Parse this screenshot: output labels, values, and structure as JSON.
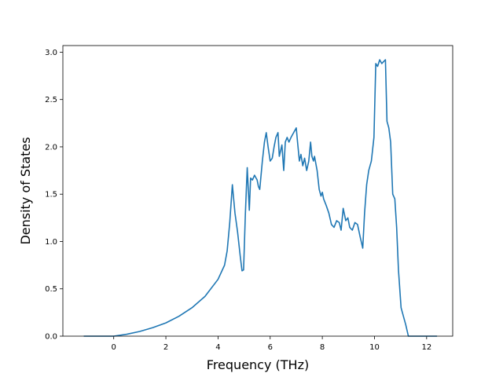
{
  "chart_data": {
    "type": "line",
    "xlabel": "Frequency (THz)",
    "ylabel": "Density of States",
    "xlim": [
      -1.95,
      13.0
    ],
    "ylim": [
      0.0,
      3.07
    ],
    "x_ticks": [
      0,
      2,
      4,
      6,
      8,
      10,
      12
    ],
    "x_tick_labels": [
      "0",
      "2",
      "4",
      "6",
      "8",
      "10",
      "12"
    ],
    "y_ticks": [
      0.0,
      0.5,
      1.0,
      1.5,
      2.0,
      2.5,
      3.0
    ],
    "y_tick_labels": [
      "0.0",
      "0.5",
      "1.0",
      "1.5",
      "2.0",
      "2.5",
      "3.0"
    ],
    "grid": false,
    "line_color": "#1f77b4",
    "series": [
      {
        "x": [
          -1.15,
          0.0,
          0.5,
          1.0,
          1.5,
          2.0,
          2.5,
          3.0,
          3.5,
          4.0,
          4.25,
          4.35,
          4.45,
          4.55,
          4.65,
          4.75,
          4.85,
          4.92,
          4.98,
          5.05,
          5.12,
          5.2,
          5.25,
          5.32,
          5.4,
          5.5,
          5.55,
          5.6,
          5.7,
          5.78,
          5.85,
          5.92,
          6.0,
          6.08,
          6.15,
          6.22,
          6.3,
          6.35,
          6.45,
          6.52,
          6.58,
          6.65,
          6.72,
          6.8,
          6.9,
          7.0,
          7.05,
          7.12,
          7.18,
          7.25,
          7.32,
          7.4,
          7.48,
          7.55,
          7.6,
          7.66,
          7.7,
          7.8,
          7.88,
          7.95,
          8.0,
          8.05,
          8.15,
          8.25,
          8.35,
          8.45,
          8.55,
          8.65,
          8.72,
          8.8,
          8.9,
          8.98,
          9.05,
          9.15,
          9.25,
          9.35,
          9.45,
          9.55,
          9.62,
          9.7,
          9.78,
          9.88,
          9.98,
          10.05,
          10.12,
          10.2,
          10.28,
          10.35,
          10.42,
          10.48,
          10.55,
          10.62,
          10.7,
          10.78,
          10.85,
          10.92,
          11.02,
          11.12,
          11.2,
          11.3,
          11.6,
          12.4
        ],
        "y": [
          0.0,
          0.0,
          0.02,
          0.05,
          0.09,
          0.14,
          0.21,
          0.3,
          0.42,
          0.6,
          0.75,
          0.9,
          1.2,
          1.6,
          1.3,
          1.1,
          0.85,
          0.69,
          0.7,
          1.3,
          1.78,
          1.33,
          1.67,
          1.65,
          1.7,
          1.65,
          1.58,
          1.55,
          1.85,
          2.05,
          2.15,
          2.0,
          1.85,
          1.88,
          2.0,
          2.1,
          2.15,
          1.9,
          2.02,
          1.75,
          2.05,
          2.1,
          2.05,
          2.1,
          2.15,
          2.2,
          2.05,
          1.85,
          1.92,
          1.8,
          1.88,
          1.75,
          1.85,
          2.05,
          1.9,
          1.85,
          1.9,
          1.75,
          1.55,
          1.48,
          1.52,
          1.45,
          1.38,
          1.3,
          1.18,
          1.15,
          1.22,
          1.2,
          1.12,
          1.35,
          1.22,
          1.25,
          1.15,
          1.12,
          1.2,
          1.18,
          1.05,
          0.93,
          1.3,
          1.6,
          1.75,
          1.85,
          2.1,
          2.88,
          2.85,
          2.92,
          2.88,
          2.9,
          2.92,
          2.27,
          2.2,
          2.05,
          1.5,
          1.45,
          1.15,
          0.7,
          0.3,
          0.2,
          0.12,
          0.0,
          0.0,
          0.0
        ]
      }
    ]
  }
}
